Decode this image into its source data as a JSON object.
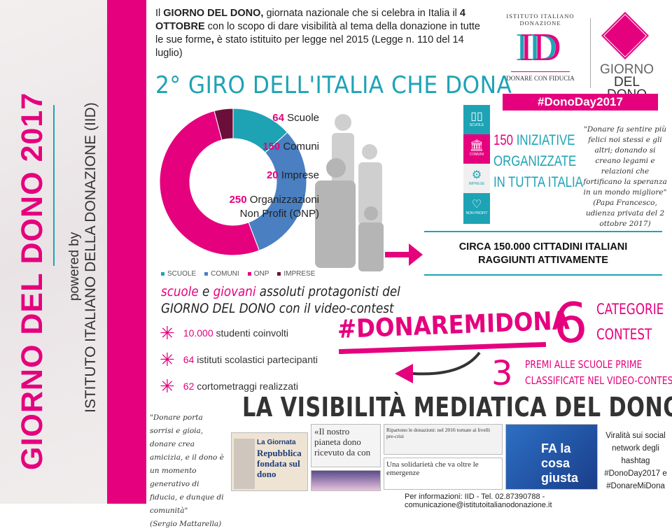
{
  "sidebar": {
    "title": "GIORNO DEL DONO 2017",
    "powered_by": "powered by",
    "institute": "ISTITUTO ITALIANO DELLA DONAZIONE (IID)"
  },
  "intro": {
    "p1": "Il ",
    "b1": "GIORNO DEL DONO,",
    "p2": " giornata nazionale che si celebra in Italia il ",
    "b2": "4 OTTOBRE",
    "p3": " con lo scopo di dare visibilità al tema della donazione in tutte le sue forme",
    "b3": ",",
    "p4": " è stato istituito per legge nel 2015 (Legge n. 110 del 14 luglio)"
  },
  "logo": {
    "arc": "ISTITUTO ITALIANO DONAZIONE",
    "mark": "ID",
    "tagline": "DONARE CON FIDUCIA",
    "giorno": "GIORNO",
    "deldono": "DEL DONO",
    "hashtag": "#DonoDay2017"
  },
  "section_title": "2° GIRO DELL'ITALIA CHE DONA",
  "colors": {
    "pink": "#e5007e",
    "teal": "#1ea3b5",
    "blue": "#4a7fc1",
    "dark": "#6b0f3a"
  },
  "chart_data": {
    "type": "pie",
    "variant": "donut",
    "categories": [
      "SCUOLE",
      "COMUNI",
      "ONP",
      "IMPRESE"
    ],
    "values": [
      64,
      150,
      250,
      20
    ],
    "colors": [
      "#1ea3b5",
      "#4a7fc1",
      "#e5007e",
      "#6b0f3a"
    ],
    "legend": "bottom"
  },
  "stats": [
    {
      "num": "64",
      "label": "Scuole",
      "box": "SCUOLE",
      "icon": "book-icon"
    },
    {
      "num": "150",
      "label": "Comuni",
      "box": "COMUNI",
      "icon": "building-icon"
    },
    {
      "num": "20",
      "label": "Imprese",
      "box": "IMPRESE",
      "icon": "gears-icon"
    },
    {
      "num": "250",
      "label": "Organizzazioni",
      "label2": "Non Profit (ONP)",
      "box": "NON PROFIT",
      "icon": "heart-icon"
    }
  ],
  "box_prefix": "DONODAY",
  "iniziative": {
    "num": "150",
    "l1": " INIZIATIVE",
    "l2": "ORGANIZZATE",
    "l3": "IN TUTTA ITALIA"
  },
  "papa_quote": "\"Donare fa sentire più felici noi stessi e gli altri; donando si creano legami e relazioni che fortificano la speranza in un mondo migliore\"",
  "papa_source": "(Papa Francesco, udienza privata del 2 ottobre 2017)",
  "cittadini": {
    "l1": "CIRCA 150.000 CITTADINI ITALIANI",
    "l2": "RAGGIUNTI ATTIVAMENTE"
  },
  "scuole_text": {
    "a": "scuole",
    "b": " e ",
    "c": "giovani",
    "d": " assoluti protagonisti del",
    "e": "GIORNO DEL DONO",
    "f": " con il video-contest"
  },
  "bullets": [
    {
      "num": "10.000",
      "text": " studenti coinvolti"
    },
    {
      "num": "64",
      "text": " istituti scolastici partecipanti"
    },
    {
      "num": "62",
      "text": " cortometraggi realizzati"
    }
  ],
  "contest": {
    "hashtag": "#DONAREMIDONA",
    "six": "6",
    "cat1": "CATEGORIE",
    "cat2": "CONTEST",
    "three": "3",
    "premi1": "PREMI ALLE SCUOLE PRIME",
    "premi2": "CLASSIFICATE NEL VIDEO-CONTEST"
  },
  "media": {
    "title": "LA VISIBILITÀ MEDIATICA DEL DONO",
    "mattarella_quote": "\"Donare porta sorrisi e gioia, donare crea amicizia, e il dono è un momento generativo di fiducia, e dunque di comunità\"",
    "mattarella_source": "(Sergio Mattarella)",
    "clip1_label": "La Giornata",
    "clip1_head": "Repubblica fondata sul dono",
    "clip2_head": "«Il nostro pianeta dono ricevuto da con",
    "clip4_head": "Ripartono le donazioni: nel 2016 tornate ai livelli pre-crisi",
    "clip5_head": "Una solidarietà che va oltre le emergenze",
    "clip6_head": "FA la cosa giusta",
    "viral": "Viralità sui social network degli hashtag #DonoDay2017 e #DonareMiDona"
  },
  "footer": "Per informazioni: IID - Tel. 02.87390788 - comunicazione@istitutoitalianodonazione.it"
}
